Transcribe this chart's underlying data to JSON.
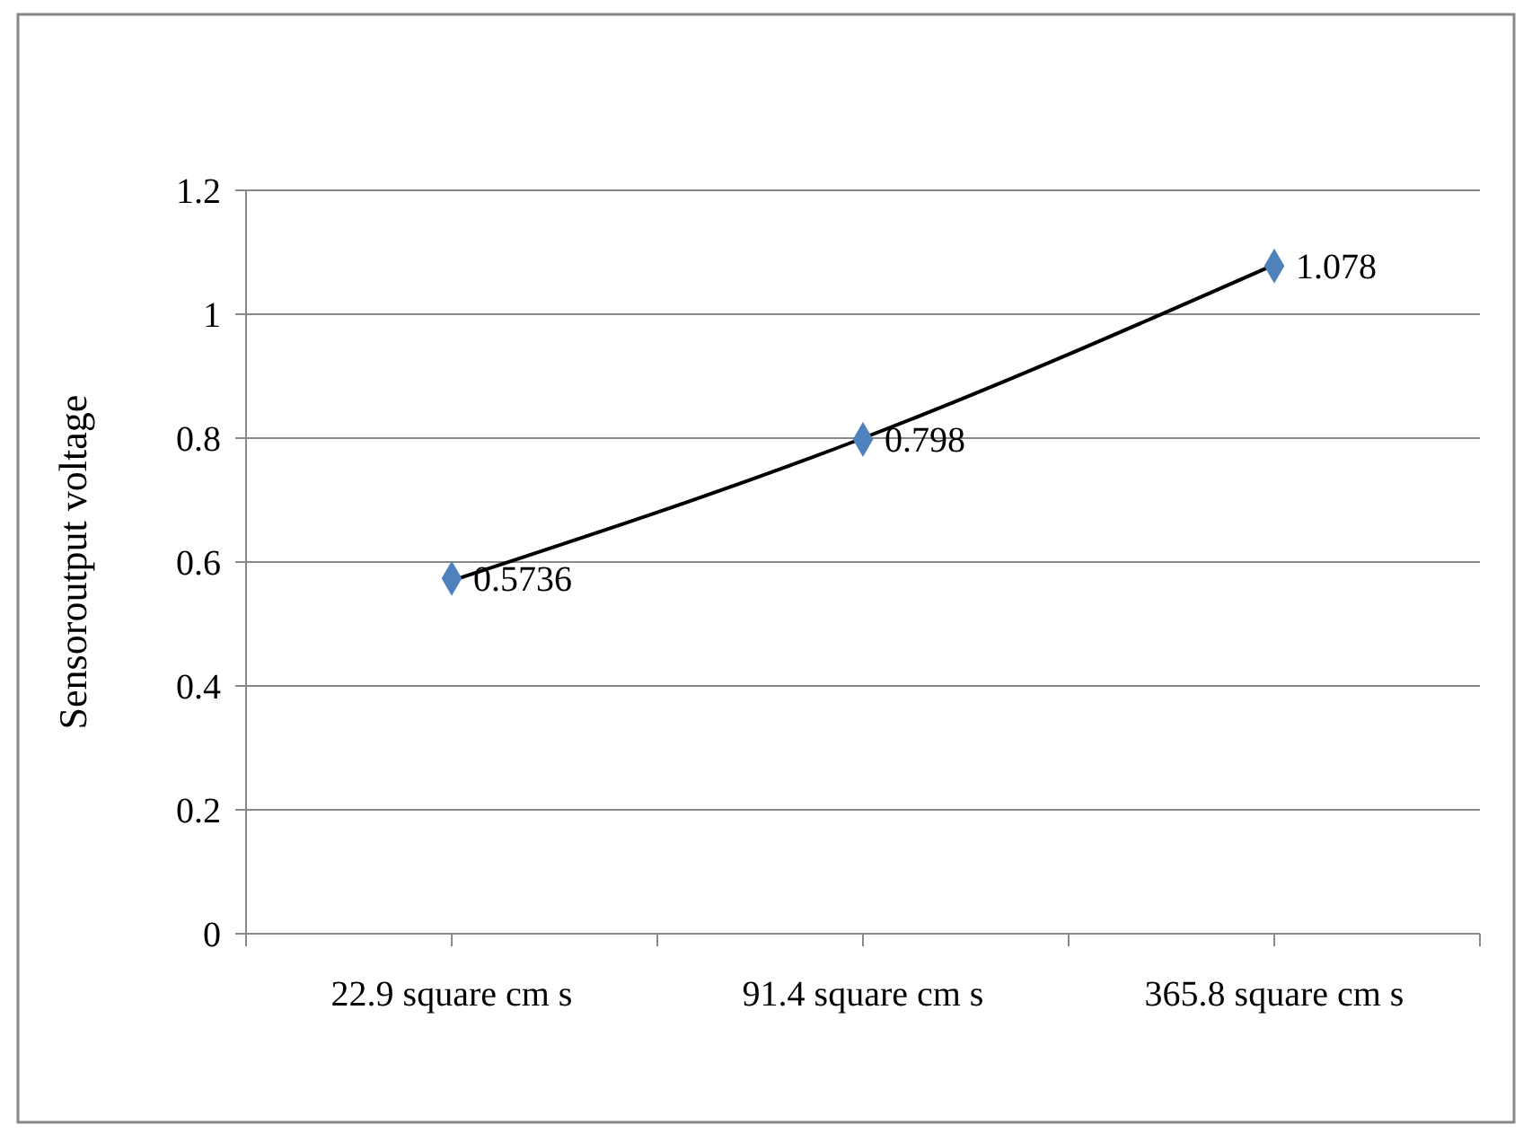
{
  "chart_data": {
    "type": "line",
    "ylabel": "Sensoroutput voltage",
    "categories": [
      "22.9 square cm s",
      "91.4 square cm s",
      "365.8 square cm s"
    ],
    "series": [
      {
        "color": "#000000",
        "marker": "none",
        "values": [
          0.57,
          0.8,
          1.08
        ]
      },
      {
        "type": "scatter",
        "color": "#4f81bd",
        "marker": "diamond",
        "values": [
          0.5736,
          0.798,
          1.078
        ],
        "value_labels": [
          "0.5736",
          "0.798",
          "1.078"
        ]
      }
    ],
    "ylim": [
      0,
      1.2
    ],
    "yticks": [
      0,
      0.2,
      0.4,
      0.6,
      0.8,
      1,
      1.2
    ],
    "grid": "y"
  }
}
